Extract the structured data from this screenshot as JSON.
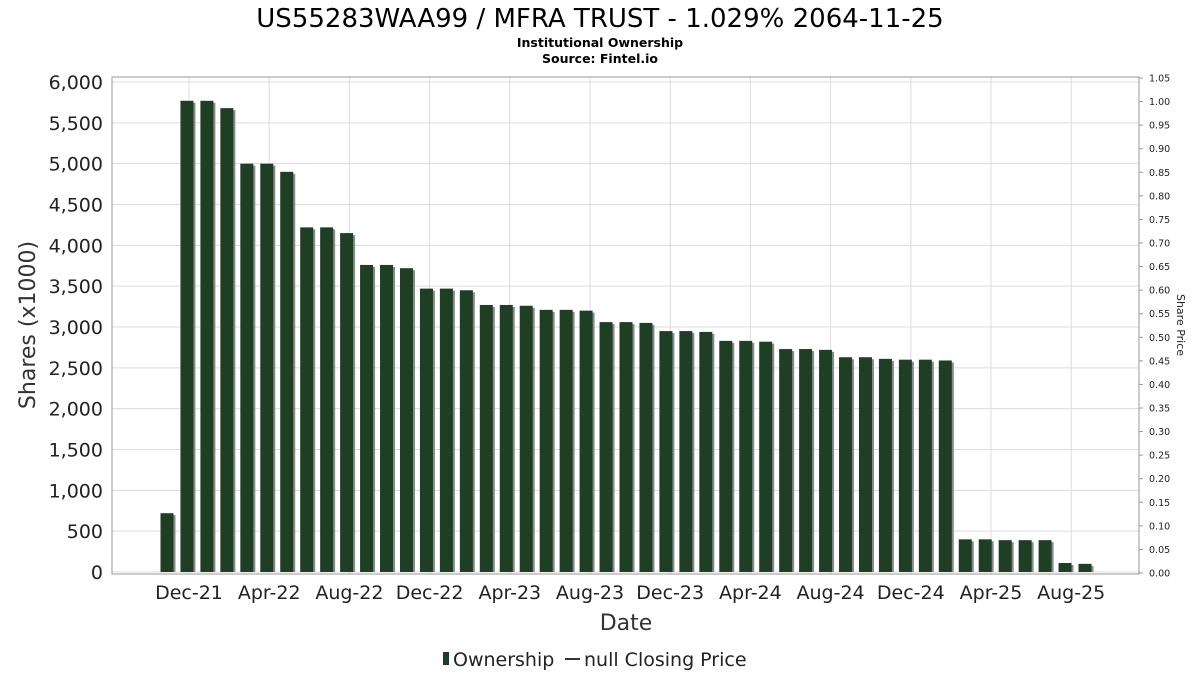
{
  "chart_data": {
    "type": "bar",
    "title": "US55283WAA99 / MFRA TRUST - 1.029% 2064-11-25",
    "subtitle_lines": [
      "Institutional Ownership",
      "Source: Fintel.io"
    ],
    "xlabel": "Date",
    "ylabel": "Shares (x1000)",
    "y2label": "Share Price",
    "ylim": [
      0,
      6000
    ],
    "y_ticks": [
      "0",
      "500",
      "1,000",
      "1,500",
      "2,000",
      "2,500",
      "3,000",
      "3,500",
      "4,000",
      "4,500",
      "5,000",
      "5,500",
      "6,000"
    ],
    "y2lim": [
      0,
      1.05
    ],
    "y2_ticks": [
      "0.00",
      "0.05",
      "0.10",
      "0.15",
      "0.20",
      "0.25",
      "0.30",
      "0.35",
      "0.40",
      "0.45",
      "0.50",
      "0.55",
      "0.60",
      "0.65",
      "0.70",
      "0.75",
      "0.80",
      "0.85",
      "0.90",
      "0.95",
      "1.00",
      "1.05"
    ],
    "x_ticks": [
      "Dec-21",
      "Apr-22",
      "Aug-22",
      "Dec-22",
      "Apr-23",
      "Aug-23",
      "Dec-23",
      "Apr-24",
      "Aug-24",
      "Dec-24",
      "Apr-25",
      "Aug-25"
    ],
    "legend": {
      "placement": "bottom",
      "entries": [
        {
          "label": "Ownership",
          "color": "#1e3f24"
        },
        {
          "label": "null Closing Price",
          "color": "#333333"
        }
      ]
    },
    "bar_color": "#1e3f24",
    "shadow_color": "#8a8a8a",
    "grid": true,
    "series": [
      {
        "values": [
          720,
          5770,
          5770,
          5680,
          5000,
          5000,
          4900,
          4220,
          4220,
          4150,
          3760,
          3760,
          3720,
          3470,
          3470,
          3450,
          3270,
          3270,
          3260,
          3210,
          3210,
          3200,
          3060,
          3060,
          3050,
          2950,
          2950,
          2940,
          2830,
          2830,
          2820,
          2730,
          2730,
          2720,
          2630,
          2630,
          2610,
          2600,
          2600,
          2590,
          400,
          400,
          390,
          390,
          390,
          110,
          100
        ]
      }
    ]
  }
}
